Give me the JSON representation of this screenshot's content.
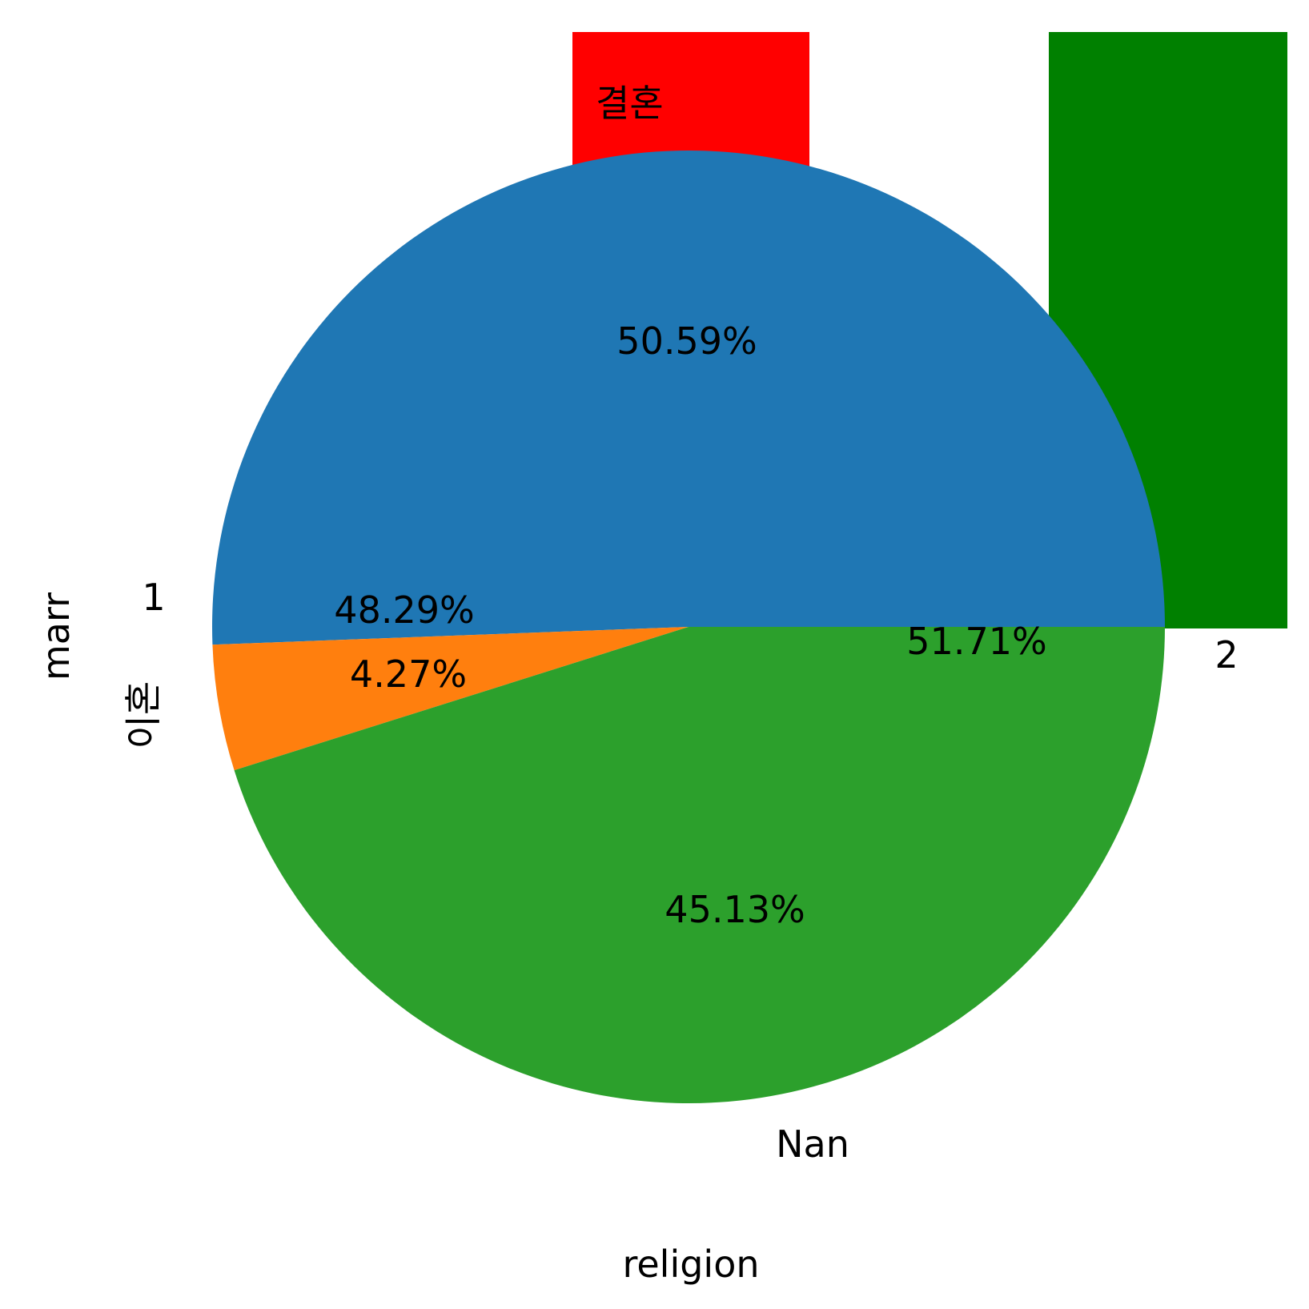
{
  "chart_data": [
    {
      "type": "bar",
      "categories": [
        "결혼",
        "2"
      ],
      "series": [
        {
          "color": "#ff0000",
          "category": "결혼"
        },
        {
          "color": "#008000",
          "category": "2"
        }
      ],
      "labels": {
        "marriage": "결혼",
        "divorce": "이혼"
      },
      "xlabel": "religion",
      "ylabel": "marr"
    },
    {
      "type": "pie",
      "slices": [
        {
          "label": "1",
          "percent_label": "50.59%",
          "value": 50.59,
          "color": "#1f77b4"
        },
        {
          "label": "",
          "percent_label": "4.27%",
          "value": 4.27,
          "color": "#ff7f0e"
        },
        {
          "label": "Nan",
          "percent_label": "45.13%",
          "value": 45.13,
          "color": "#2ca02c"
        }
      ],
      "extra_percent_labels": [
        "48.29%",
        "51.71%"
      ],
      "category_labels": {
        "left": "1",
        "right": "2",
        "bottom": "Nan"
      }
    }
  ]
}
